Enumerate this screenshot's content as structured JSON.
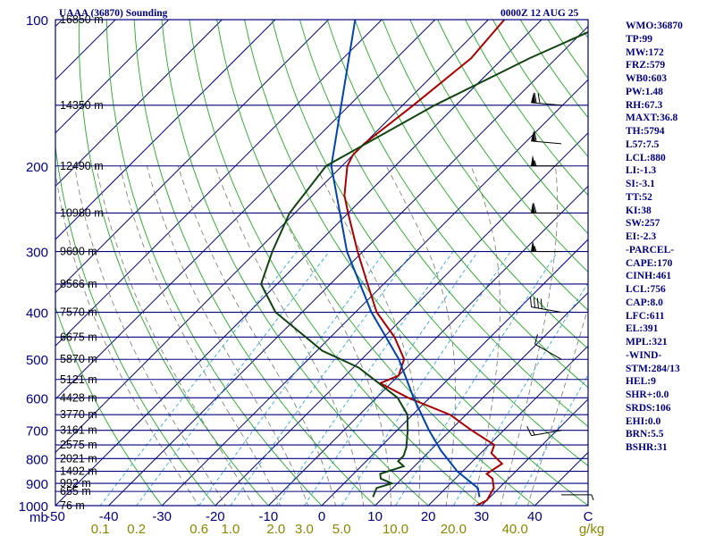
{
  "header": {
    "station": "UAAA (36870) Sounding",
    "time": "0000Z 12 AUG 25"
  },
  "stats": [
    "WMO:36870",
    "TP:99",
    "MW:172",
    "FRZ:579",
    "WB0:603",
    "PW:1.48",
    "RH:67.3",
    "MAXT:36.8",
    "TH:5794",
    "L57:7.5",
    "LCL:880",
    "LI:-1.3",
    "SI:-3.1",
    "TT:52",
    "KI:38",
    "SW:257",
    "EI:-2.3",
    "-PARCEL-",
    "CAPE:170",
    "CINH:461",
    "LCL:756",
    "CAP:8.0",
    "LFC:611",
    "EL:391",
    "MPL:321",
    "-WIND-",
    "STM:284/13",
    "HEL:9",
    "SHR+:0.0",
    "SRDS:106",
    "EHI:0.0",
    "BRN:5.5",
    "BSHR:31"
  ],
  "chart_data": {
    "type": "line",
    "subtype": "skew-T log-P sounding",
    "x_axis_unit_label": "mb",
    "temperature_ticks": [
      "-50",
      "-40",
      "-30",
      "-20",
      "-10",
      "0",
      "10",
      "20",
      "30",
      "40",
      "C"
    ],
    "temperature_tick_values": [
      -50,
      -40,
      -30,
      -20,
      -10,
      0,
      10,
      20,
      30,
      40,
      50
    ],
    "mixing_ratio_ticks": [
      "0.1",
      "0.2",
      "0.6",
      "1.0",
      "2.0",
      "3.0",
      "5.0",
      "10.0",
      "20.0",
      "40.0",
      "g/kg"
    ],
    "mixing_ratio_values": [
      0.1,
      0.2,
      0.6,
      1.0,
      2.0,
      3.0,
      5.0,
      10.0,
      20.0,
      40.0
    ],
    "pressure_ticks": [
      "100",
      "200",
      "300",
      "400",
      "500",
      "600",
      "700",
      "800",
      "900",
      "1000"
    ],
    "pressure_tick_values": [
      100,
      200,
      300,
      400,
      500,
      600,
      700,
      800,
      900,
      1000
    ],
    "height_labels": [
      "16850 m",
      "14350 m",
      "12490 m",
      "10980 m",
      "9690 m",
      "8566 m",
      "7570 m",
      "6675 m",
      "5870 m",
      "5121 m",
      "4428 m",
      "3770 m",
      "3161 m",
      "2575 m",
      "2021 m",
      "1492 m",
      "992 m",
      "655 m",
      "76 m"
    ],
    "height_label_pressures": [
      100,
      150,
      200,
      250,
      300,
      350,
      400,
      450,
      500,
      550,
      600,
      650,
      700,
      750,
      800,
      850,
      900,
      935,
      1000
    ],
    "ylim": [
      1000,
      100
    ],
    "xlim": [
      -50,
      50
    ],
    "series": [
      {
        "color": "#aa0000",
        "points": [
          [
            100,
            -57
          ],
          [
            120,
            -56
          ],
          [
            150,
            -58
          ],
          [
            180,
            -60
          ],
          [
            190,
            -60
          ],
          [
            200,
            -59
          ],
          [
            230,
            -54
          ],
          [
            250,
            -50
          ],
          [
            300,
            -41
          ],
          [
            350,
            -33
          ],
          [
            400,
            -26
          ],
          [
            450,
            -18
          ],
          [
            500,
            -12
          ],
          [
            540,
            -10
          ],
          [
            560,
            -12
          ],
          [
            600,
            -4
          ],
          [
            650,
            7
          ],
          [
            700,
            14
          ],
          [
            750,
            21
          ],
          [
            780,
            22
          ],
          [
            800,
            24
          ],
          [
            820,
            26
          ],
          [
            860,
            25
          ],
          [
            880,
            27
          ],
          [
            920,
            29
          ],
          [
            975,
            30
          ],
          [
            1000,
            29
          ]
        ]
      },
      {
        "color": "#0044aa",
        "points": [
          [
            100,
            -85
          ],
          [
            200,
            -62
          ],
          [
            300,
            -43
          ],
          [
            400,
            -27
          ],
          [
            500,
            -13
          ],
          [
            600,
            -3
          ],
          [
            700,
            6
          ],
          [
            770,
            12
          ],
          [
            850,
            19
          ],
          [
            920,
            26
          ],
          [
            960,
            28
          ]
        ]
      },
      {
        "color": "#114411",
        "points": [
          [
            100,
            -36
          ],
          [
            120,
            -45
          ],
          [
            150,
            -54
          ],
          [
            200,
            -63
          ],
          [
            250,
            -61
          ],
          [
            300,
            -57
          ],
          [
            350,
            -53
          ],
          [
            400,
            -45
          ],
          [
            480,
            -29
          ],
          [
            520,
            -19
          ],
          [
            600,
            -6
          ],
          [
            650,
            -1
          ],
          [
            700,
            2
          ],
          [
            760,
            5
          ],
          [
            790,
            6
          ],
          [
            810,
            6
          ],
          [
            830,
            8
          ],
          [
            860,
            5
          ],
          [
            880,
            6
          ],
          [
            900,
            9
          ],
          [
            920,
            7
          ],
          [
            960,
            8
          ]
        ]
      }
    ],
    "wind_barbs": [
      {
        "p": 150,
        "dir": 275,
        "speed": 70
      },
      {
        "p": 180,
        "dir": 275,
        "speed": 60
      },
      {
        "p": 200,
        "dir": 270,
        "speed": 55
      },
      {
        "p": 250,
        "dir": 270,
        "speed": 60
      },
      {
        "p": 300,
        "dir": 270,
        "speed": 55
      },
      {
        "p": 400,
        "dir": 280,
        "speed": 40
      },
      {
        "p": 500,
        "dir": 300,
        "speed": 10
      },
      {
        "p": 700,
        "dir": 260,
        "speed": 15
      },
      {
        "p": 950,
        "dir": 90,
        "speed": 5
      }
    ]
  }
}
